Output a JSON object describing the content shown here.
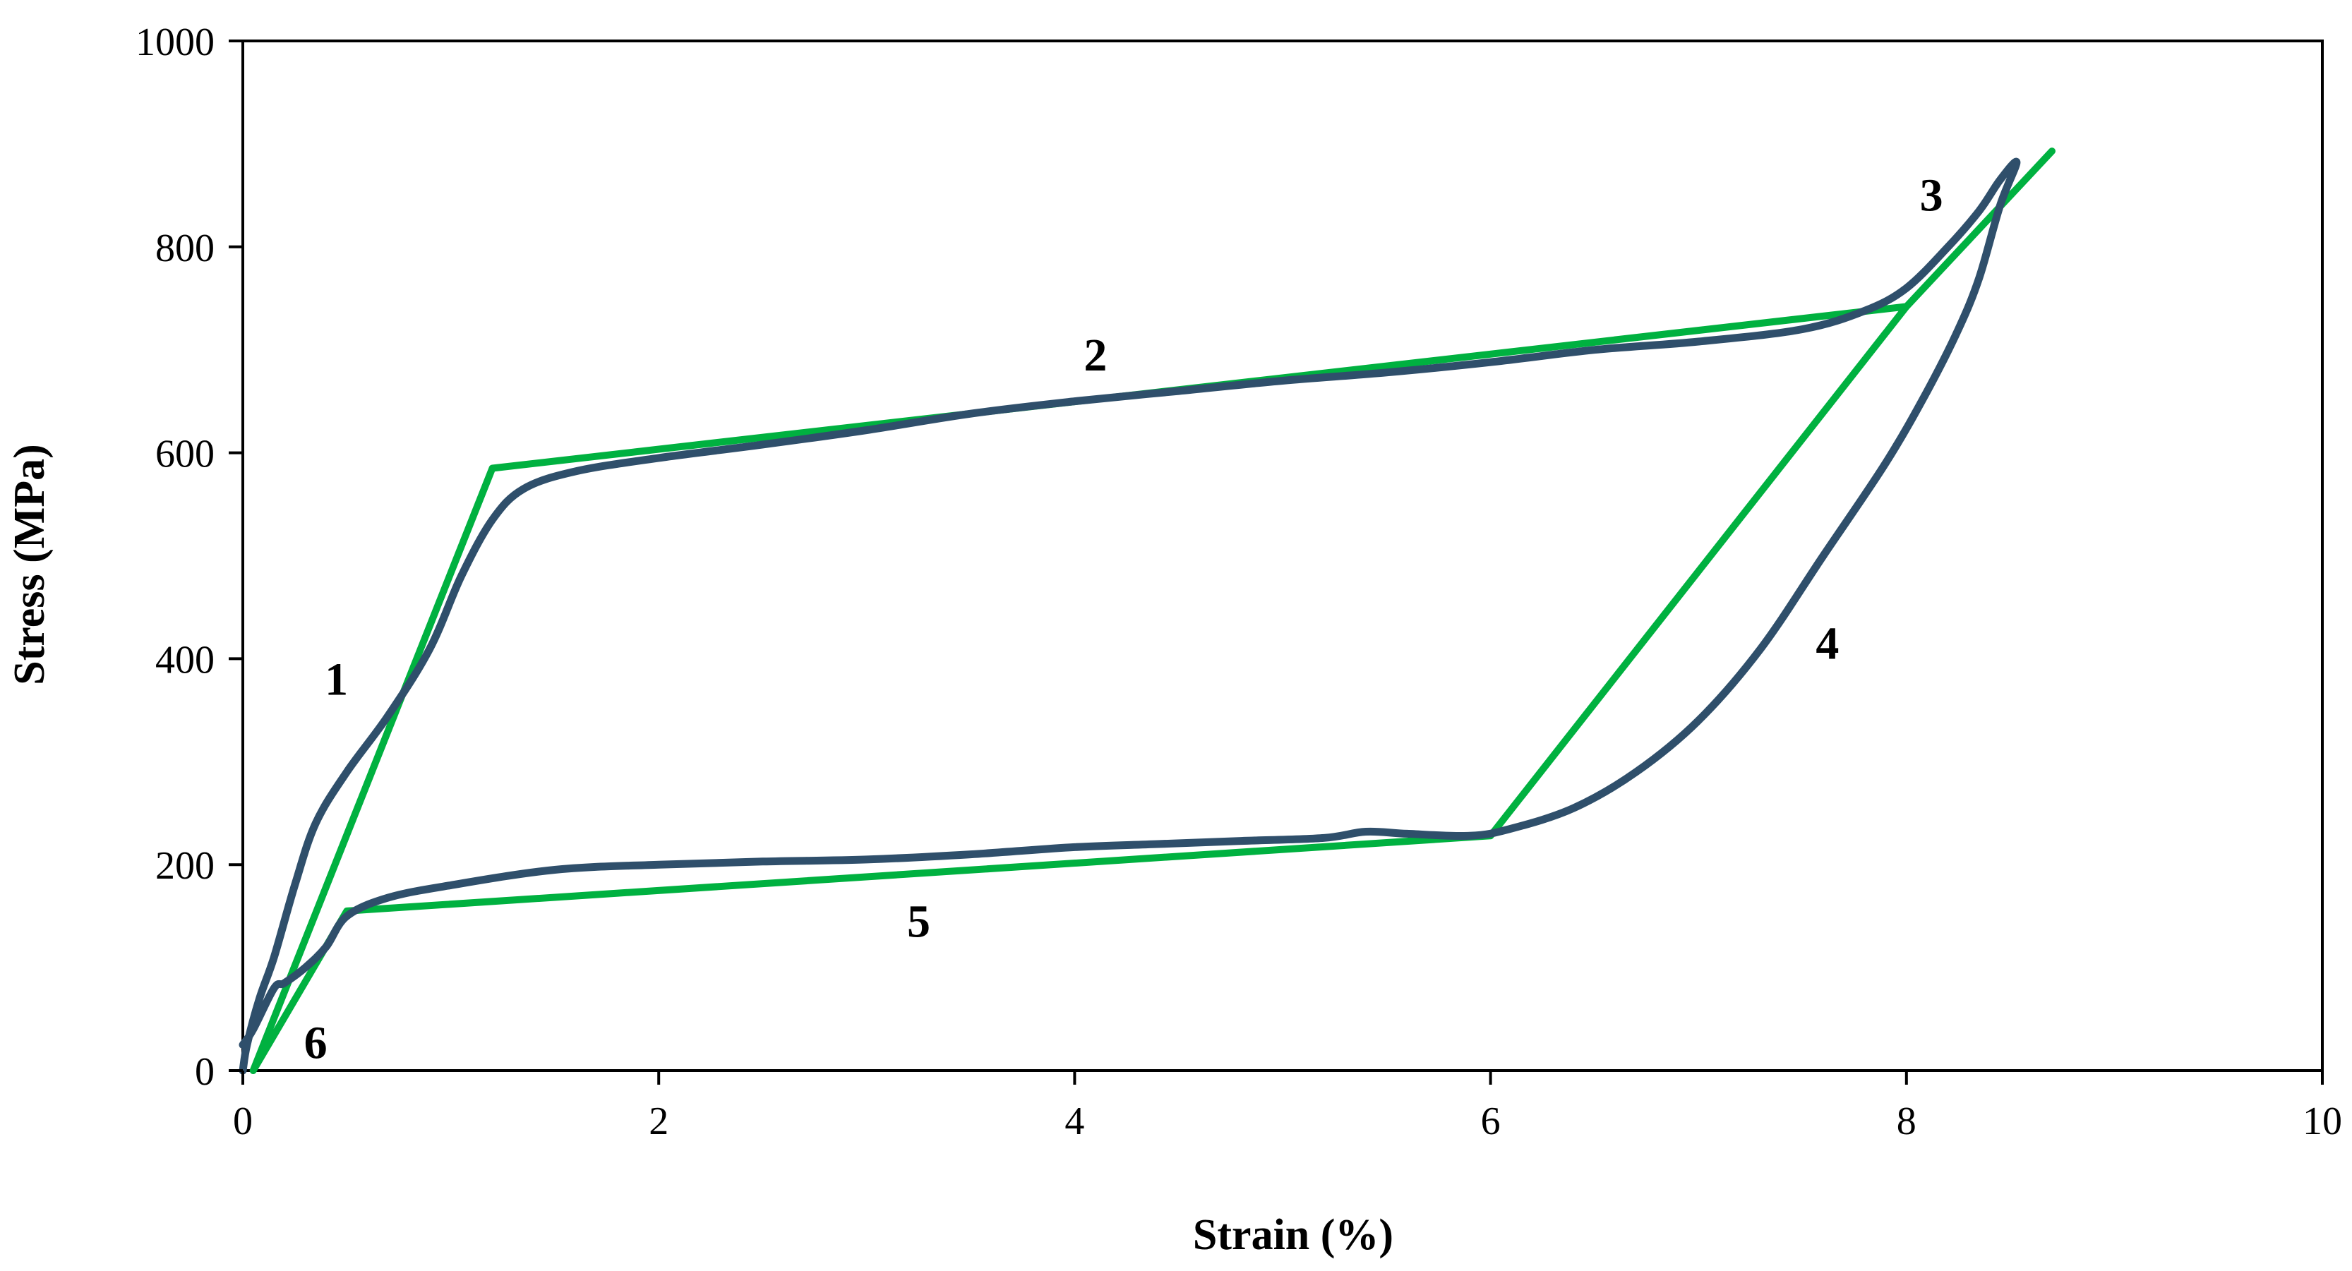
{
  "chart_data": {
    "type": "line",
    "xlabel": "Strain (%)",
    "ylabel": "Stress (MPa)",
    "xlim": [
      0,
      10
    ],
    "ylim": [
      0,
      1000
    ],
    "xticks": [
      0,
      2,
      4,
      6,
      8,
      10
    ],
    "yticks": [
      0,
      200,
      400,
      600,
      800,
      1000
    ],
    "grid": false,
    "legend": "none",
    "series": [
      {
        "color": "#00b140",
        "smooth": false,
        "x": [
          0.05,
          1.2,
          8.0,
          8.7,
          8.0,
          6.0,
          0.5,
          0.05
        ],
        "y": [
          0,
          585,
          742,
          893,
          742,
          228,
          155,
          0
        ]
      },
      {
        "color": "#2f4f6b",
        "smooth": true,
        "x": [
          0.0,
          0.02,
          0.08,
          0.15,
          0.25,
          0.35,
          0.5,
          0.7,
          0.9,
          1.05,
          1.2,
          1.35,
          1.6,
          2.0,
          2.5,
          3.0,
          3.5,
          4.0,
          4.5,
          5.0,
          5.5,
          6.0,
          6.5,
          7.0,
          7.5,
          7.8,
          8.0,
          8.2,
          8.35,
          8.45,
          8.53,
          8.45,
          8.35,
          8.25,
          8.1,
          7.9,
          7.6,
          7.3,
          7.0,
          6.7,
          6.4,
          6.1,
          5.9,
          5.6,
          5.4,
          5.2,
          4.8,
          4.4,
          4.0,
          3.5,
          3.0,
          2.5,
          2.0,
          1.5,
          1.0,
          0.7,
          0.5,
          0.4,
          0.3,
          0.2,
          0.15,
          0.05,
          0.0
        ],
        "y": [
          0,
          25,
          70,
          110,
          180,
          240,
          290,
          345,
          410,
          480,
          535,
          565,
          582,
          595,
          608,
          622,
          638,
          650,
          660,
          670,
          678,
          688,
          700,
          708,
          720,
          738,
          760,
          800,
          835,
          865,
          882,
          840,
          770,
          720,
          660,
          590,
          500,
          410,
          340,
          290,
          255,
          235,
          228,
          230,
          232,
          226,
          223,
          220,
          217,
          210,
          205,
          203,
          200,
          195,
          180,
          168,
          150,
          120,
          100,
          85,
          80,
          40,
          25
        ]
      }
    ],
    "annotations": [
      {
        "text": "1",
        "x": 0.45,
        "y": 365
      },
      {
        "text": "2",
        "x": 4.1,
        "y": 680
      },
      {
        "text": "3",
        "x": 8.12,
        "y": 835
      },
      {
        "text": "4",
        "x": 7.62,
        "y": 400
      },
      {
        "text": "5",
        "x": 3.25,
        "y": 130
      },
      {
        "text": "6",
        "x": 0.35,
        "y": 12
      }
    ]
  }
}
